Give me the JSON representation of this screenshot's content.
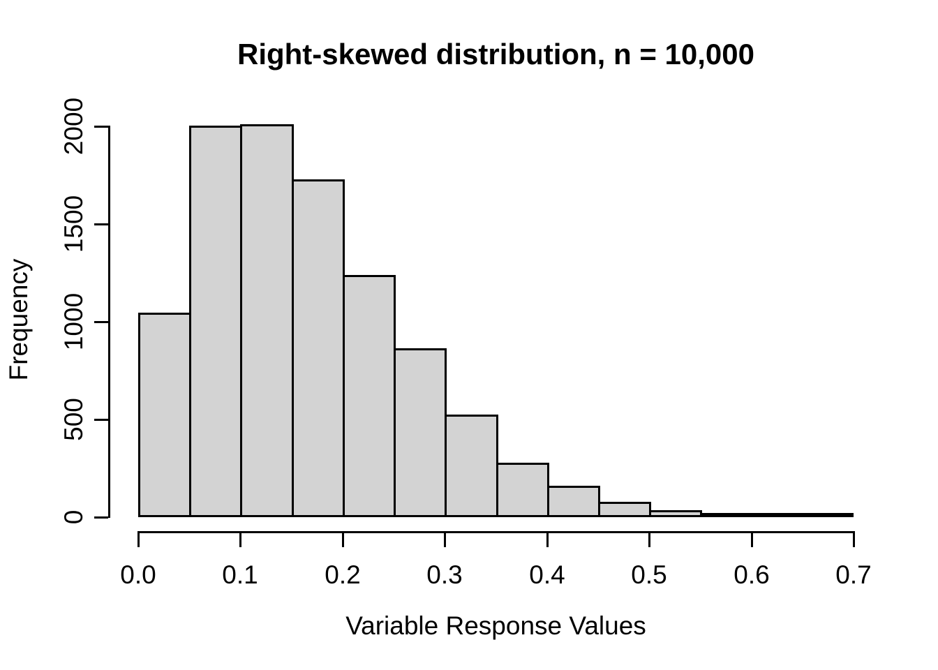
{
  "chart_data": {
    "type": "bar",
    "chart_kind": "histogram",
    "title": "Right-skewed distribution, n = 10,000",
    "xlabel": "Variable Response Values",
    "ylabel": "Frequency",
    "bin_edges": [
      0.0,
      0.05,
      0.1,
      0.15,
      0.2,
      0.25,
      0.3,
      0.35,
      0.4,
      0.45,
      0.5,
      0.55,
      0.6,
      0.65,
      0.7
    ],
    "counts": [
      1045,
      2005,
      2010,
      1730,
      1240,
      865,
      525,
      280,
      160,
      80,
      35,
      20,
      1,
      4
    ],
    "xlim": [
      0.0,
      0.7
    ],
    "ylim": [
      0,
      2000
    ],
    "x_tick_values": [
      0.0,
      0.1,
      0.2,
      0.3,
      0.4,
      0.5,
      0.6,
      0.7
    ],
    "x_tick_labels": [
      "0.0",
      "0.1",
      "0.2",
      "0.3",
      "0.4",
      "0.5",
      "0.6",
      "0.7"
    ],
    "y_tick_values": [
      0,
      500,
      1000,
      1500,
      2000
    ],
    "y_tick_labels": [
      "0",
      "500",
      "1000",
      "1500",
      "2000"
    ],
    "grid": false,
    "legend": null,
    "colors": {
      "bar_fill": "#d3d3d3",
      "bar_border": "#000000",
      "axis": "#000000",
      "text": "#000000",
      "background": "#ffffff"
    }
  }
}
